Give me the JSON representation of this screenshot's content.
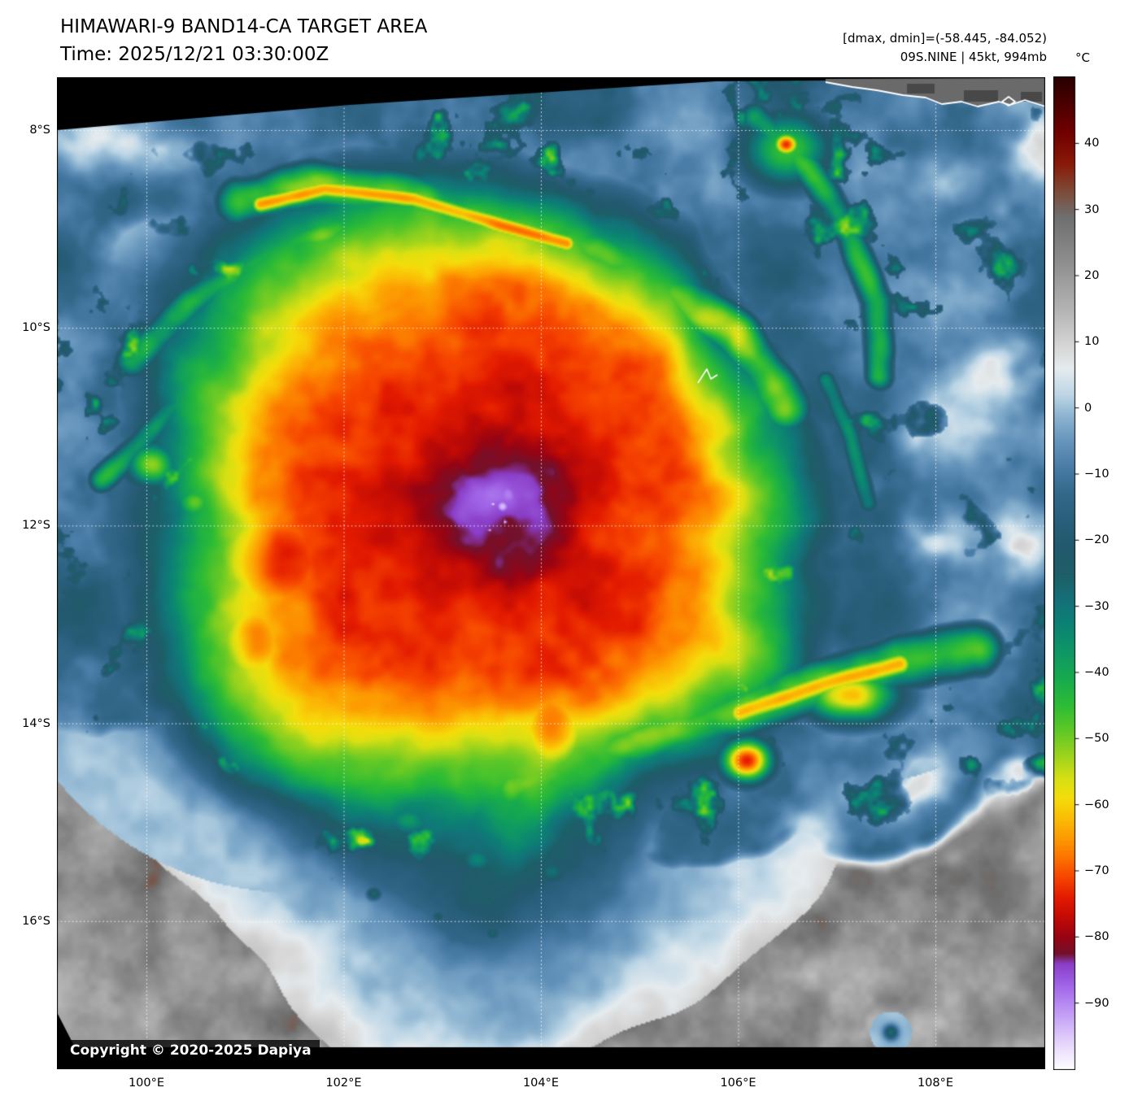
{
  "header": {
    "title": "HIMAWARI-9 BAND14-CA TARGET AREA",
    "time_line": "Time: 2025/12/21 03:30:00Z",
    "dmax_dmin_line": "[dmax, dmin]=(-58.445, -84.052)",
    "storm_line": "09S.NINE | 45kt, 994mb"
  },
  "storm": {
    "designation": "09S.NINE",
    "max_wind": "45kt",
    "min_pressure": "994mb",
    "dmax_c": -58.445,
    "dmin_c": -84.052,
    "approx_center": {
      "lon_e": 103.6,
      "lat_s": 11.6
    }
  },
  "axes": {
    "lat_ticks": [
      {
        "value": 8,
        "label": "8°S"
      },
      {
        "value": 10,
        "label": "10°S"
      },
      {
        "value": 12,
        "label": "12°S"
      },
      {
        "value": 14,
        "label": "14°S"
      },
      {
        "value": 16,
        "label": "16°S"
      }
    ],
    "lon_ticks": [
      {
        "value": 100,
        "label": "100°E"
      },
      {
        "value": 102,
        "label": "102°E"
      },
      {
        "value": 104,
        "label": "104°E"
      },
      {
        "value": 106,
        "label": "106°E"
      },
      {
        "value": 108,
        "label": "108°E"
      }
    ]
  },
  "colorbar": {
    "unit": "°C",
    "top_value": 50,
    "bottom_value": -100,
    "ticks": [
      {
        "value": 40,
        "label": "40"
      },
      {
        "value": 30,
        "label": "30"
      },
      {
        "value": 20,
        "label": "20"
      },
      {
        "value": 10,
        "label": "10"
      },
      {
        "value": 0,
        "label": "0"
      },
      {
        "value": -10,
        "label": "−10"
      },
      {
        "value": -20,
        "label": "−20"
      },
      {
        "value": -30,
        "label": "−30"
      },
      {
        "value": -40,
        "label": "−40"
      },
      {
        "value": -50,
        "label": "−50"
      },
      {
        "value": -60,
        "label": "−60"
      },
      {
        "value": -70,
        "label": "−70"
      },
      {
        "value": -80,
        "label": "−80"
      },
      {
        "value": -90,
        "label": "−90"
      }
    ],
    "stops": [
      [
        50,
        "#2a0000"
      ],
      [
        42,
        "#6e0000"
      ],
      [
        37,
        "#8a1a08"
      ],
      [
        33,
        "#7e4a36"
      ],
      [
        29,
        "#6f6f6f"
      ],
      [
        22,
        "#8f8f8f"
      ],
      [
        15,
        "#b4b4b4"
      ],
      [
        9,
        "#d9d9d9"
      ],
      [
        6,
        "#e6ecef"
      ],
      [
        2,
        "#bdd6e6"
      ],
      [
        -1,
        "#8fb6d2"
      ],
      [
        -5,
        "#6695bc"
      ],
      [
        -9,
        "#497ca6"
      ],
      [
        -13,
        "#33688a"
      ],
      [
        -17,
        "#2a5f7c"
      ],
      [
        -21,
        "#23596d"
      ],
      [
        -25,
        "#1d5f68"
      ],
      [
        -29,
        "#147078"
      ],
      [
        -33,
        "#0c8374"
      ],
      [
        -37,
        "#0f9865"
      ],
      [
        -41,
        "#18ab4d"
      ],
      [
        -45,
        "#2fbc35"
      ],
      [
        -49,
        "#63c926"
      ],
      [
        -53,
        "#a4d51c"
      ],
      [
        -56,
        "#d8e013"
      ],
      [
        -59,
        "#f5dd0b"
      ],
      [
        -62,
        "#fbbd06"
      ],
      [
        -65,
        "#fc9b02"
      ],
      [
        -68,
        "#fc7300"
      ],
      [
        -71,
        "#f64400"
      ],
      [
        -74,
        "#e31b00"
      ],
      [
        -77,
        "#c20b05"
      ],
      [
        -80,
        "#970413"
      ],
      [
        -82.5,
        "#73122e"
      ],
      [
        -84,
        "#8a3ec6"
      ],
      [
        -87,
        "#9f62e6"
      ],
      [
        -90,
        "#b78af2"
      ],
      [
        -93,
        "#cfb0f8"
      ],
      [
        -96,
        "#e6d6fc"
      ],
      [
        -100,
        "#ffffff"
      ]
    ]
  },
  "copyright": "Copyright © 2020-2025 Dapiya"
}
